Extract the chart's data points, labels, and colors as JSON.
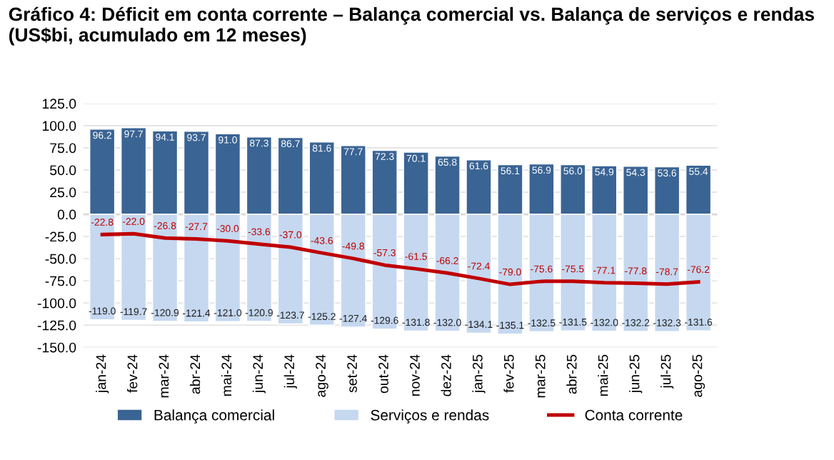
{
  "chart_data": {
    "type": "bar",
    "title": "Gráfico 4: Déficit em conta corrente – Balança comercial vs. Balança de serviços e rendas (US$bi, acumulado em 12 meses)",
    "categories": [
      "jan-24",
      "fev-24",
      "mar-24",
      "abr-24",
      "mai-24",
      "jun-24",
      "jul-24",
      "ago-24",
      "set-24",
      "out-24",
      "nov-24",
      "dez-24",
      "jan-25",
      "fev-25",
      "mar-25",
      "abr-25",
      "mai-25",
      "jun-25",
      "jul-25",
      "ago-25"
    ],
    "series": [
      {
        "name": "Balança comercial",
        "color": "#3a6494",
        "values": [
          96.2,
          97.7,
          94.1,
          93.7,
          91.0,
          87.3,
          86.7,
          81.6,
          77.7,
          72.3,
          70.1,
          65.8,
          61.6,
          56.1,
          56.9,
          56.0,
          54.9,
          54.3,
          53.6,
          55.4
        ],
        "value_labels": [
          "96.2",
          "97.7",
          "94.1",
          "93.7",
          "91.0",
          "87.3",
          "86.7",
          "81.6",
          "77.7",
          "72.3",
          "70.1",
          "65.8",
          "61.6",
          "56.1",
          "56.9",
          "56.0",
          "54.9",
          "54.3",
          "53.6",
          "55.4"
        ]
      },
      {
        "name": "Serviços e rendas",
        "color": "#c5d8f0",
        "values": [
          -119.0,
          -119.7,
          -120.9,
          -121.4,
          -121.0,
          -120.9,
          -123.7,
          -125.2,
          -127.4,
          -129.6,
          -131.8,
          -132.0,
          -134.1,
          -135.1,
          -132.5,
          -131.5,
          -132.0,
          -132.2,
          -132.3,
          -131.6
        ],
        "value_labels": [
          "-119.0",
          "-119.7",
          "-120.9",
          "-121.4",
          "-121.0",
          "-120.9",
          "-123.7",
          "-125.2",
          "-127.4",
          "-129.6",
          "-131.8",
          "-132.0",
          "-134.1",
          "-135.1",
          "-132.5",
          "-131.5",
          "-132.0",
          "-132.2",
          "-132.3",
          "-131.6"
        ]
      },
      {
        "name": "Conta corrente",
        "type": "line",
        "color": "#c00000",
        "values": [
          -22.8,
          -22.0,
          -26.8,
          -27.7,
          -30.0,
          -33.6,
          -37.0,
          -43.6,
          -49.8,
          -57.3,
          -61.5,
          -66.2,
          -72.4,
          -79.0,
          -75.6,
          -75.5,
          -77.1,
          -77.8,
          -78.7,
          -76.2
        ],
        "value_labels": [
          "-22.8",
          "-22.0",
          "-26.8",
          "-27.7",
          "-30.0",
          "-33.6",
          "-37.0",
          "-43.6",
          "-49.8",
          "-57.3",
          "-61.5",
          "-66.2",
          "-72.4",
          "-79.0",
          "-75.6",
          "-75.5",
          "-77.1",
          "-77.8",
          "-78.7",
          "-76.2"
        ]
      }
    ],
    "ylim": [
      -150,
      125
    ],
    "yticks": [
      {
        "value": -150,
        "label": "-150.0"
      },
      {
        "value": -125,
        "label": "-125.0"
      },
      {
        "value": -100,
        "label": "-100.0"
      },
      {
        "value": -75,
        "label": "-75.0"
      },
      {
        "value": -50,
        "label": "-50.0"
      },
      {
        "value": -25,
        "label": "-25.0"
      },
      {
        "value": 0,
        "label": "0.0"
      },
      {
        "value": 25,
        "label": "25.0"
      },
      {
        "value": 50,
        "label": "50.0"
      },
      {
        "value": 75,
        "label": "75.0"
      },
      {
        "value": 100,
        "label": "100.0"
      },
      {
        "value": 125,
        "label": "125.0"
      }
    ],
    "stacked": true,
    "grid": "y",
    "legend": "bottom",
    "marker": "none",
    "line_style": "solid"
  }
}
